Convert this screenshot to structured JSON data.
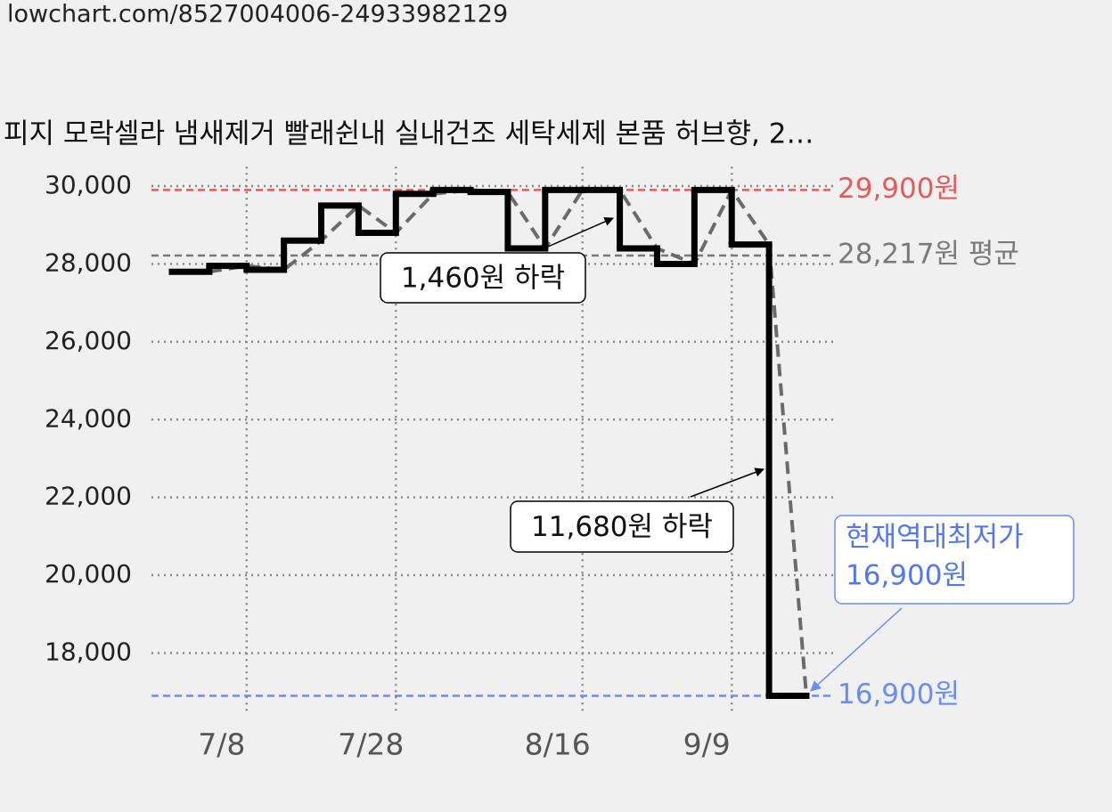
{
  "header": {
    "url": "lowchart.com/8527004006-24933982129"
  },
  "chart_data": {
    "type": "step",
    "title": "피지 모락셀라 냄새제거 빨래쉰내 실내건조 세탁세제 본품 허브향, 2…",
    "categories": [
      null,
      null,
      "7/8",
      null,
      null,
      null,
      "7/28",
      null,
      null,
      null,
      null,
      "8/16",
      null,
      null,
      null,
      "9/9",
      null
    ],
    "series": [
      {
        "color": "#000000",
        "values": [
          27800,
          27950,
          27850,
          28600,
          29500,
          28800,
          29800,
          29900,
          29850,
          28400,
          29900,
          29900,
          28400,
          28000,
          29900,
          28500,
          16900
        ]
      }
    ],
    "trend_color": "#6a6a6a",
    "ylim": [
      16500,
      30500
    ],
    "yticks": [
      {
        "value": 18000,
        "label": "18,000"
      },
      {
        "value": 20000,
        "label": "20,000"
      },
      {
        "value": 22000,
        "label": "22,000"
      },
      {
        "value": 24000,
        "label": "24,000"
      },
      {
        "value": 26000,
        "label": "26,000"
      },
      {
        "value": 28000,
        "label": "28,000"
      },
      {
        "value": 30000,
        "label": "30,000"
      }
    ],
    "grid": true,
    "reference_lines": [
      {
        "value": 29900,
        "label": "29,900원",
        "color": "#e85a5a"
      },
      {
        "value": 28217,
        "label": "28,217원 평균",
        "color": "#7a7a7a"
      },
      {
        "value": 16900,
        "label": "16,900원",
        "color": "#6a8ef0"
      }
    ],
    "annotations": [
      {
        "text": "1,460원 하락"
      },
      {
        "text": "11,680원 하락"
      },
      {
        "lines": [
          "현재역대최저가",
          "16,900원"
        ]
      }
    ]
  }
}
